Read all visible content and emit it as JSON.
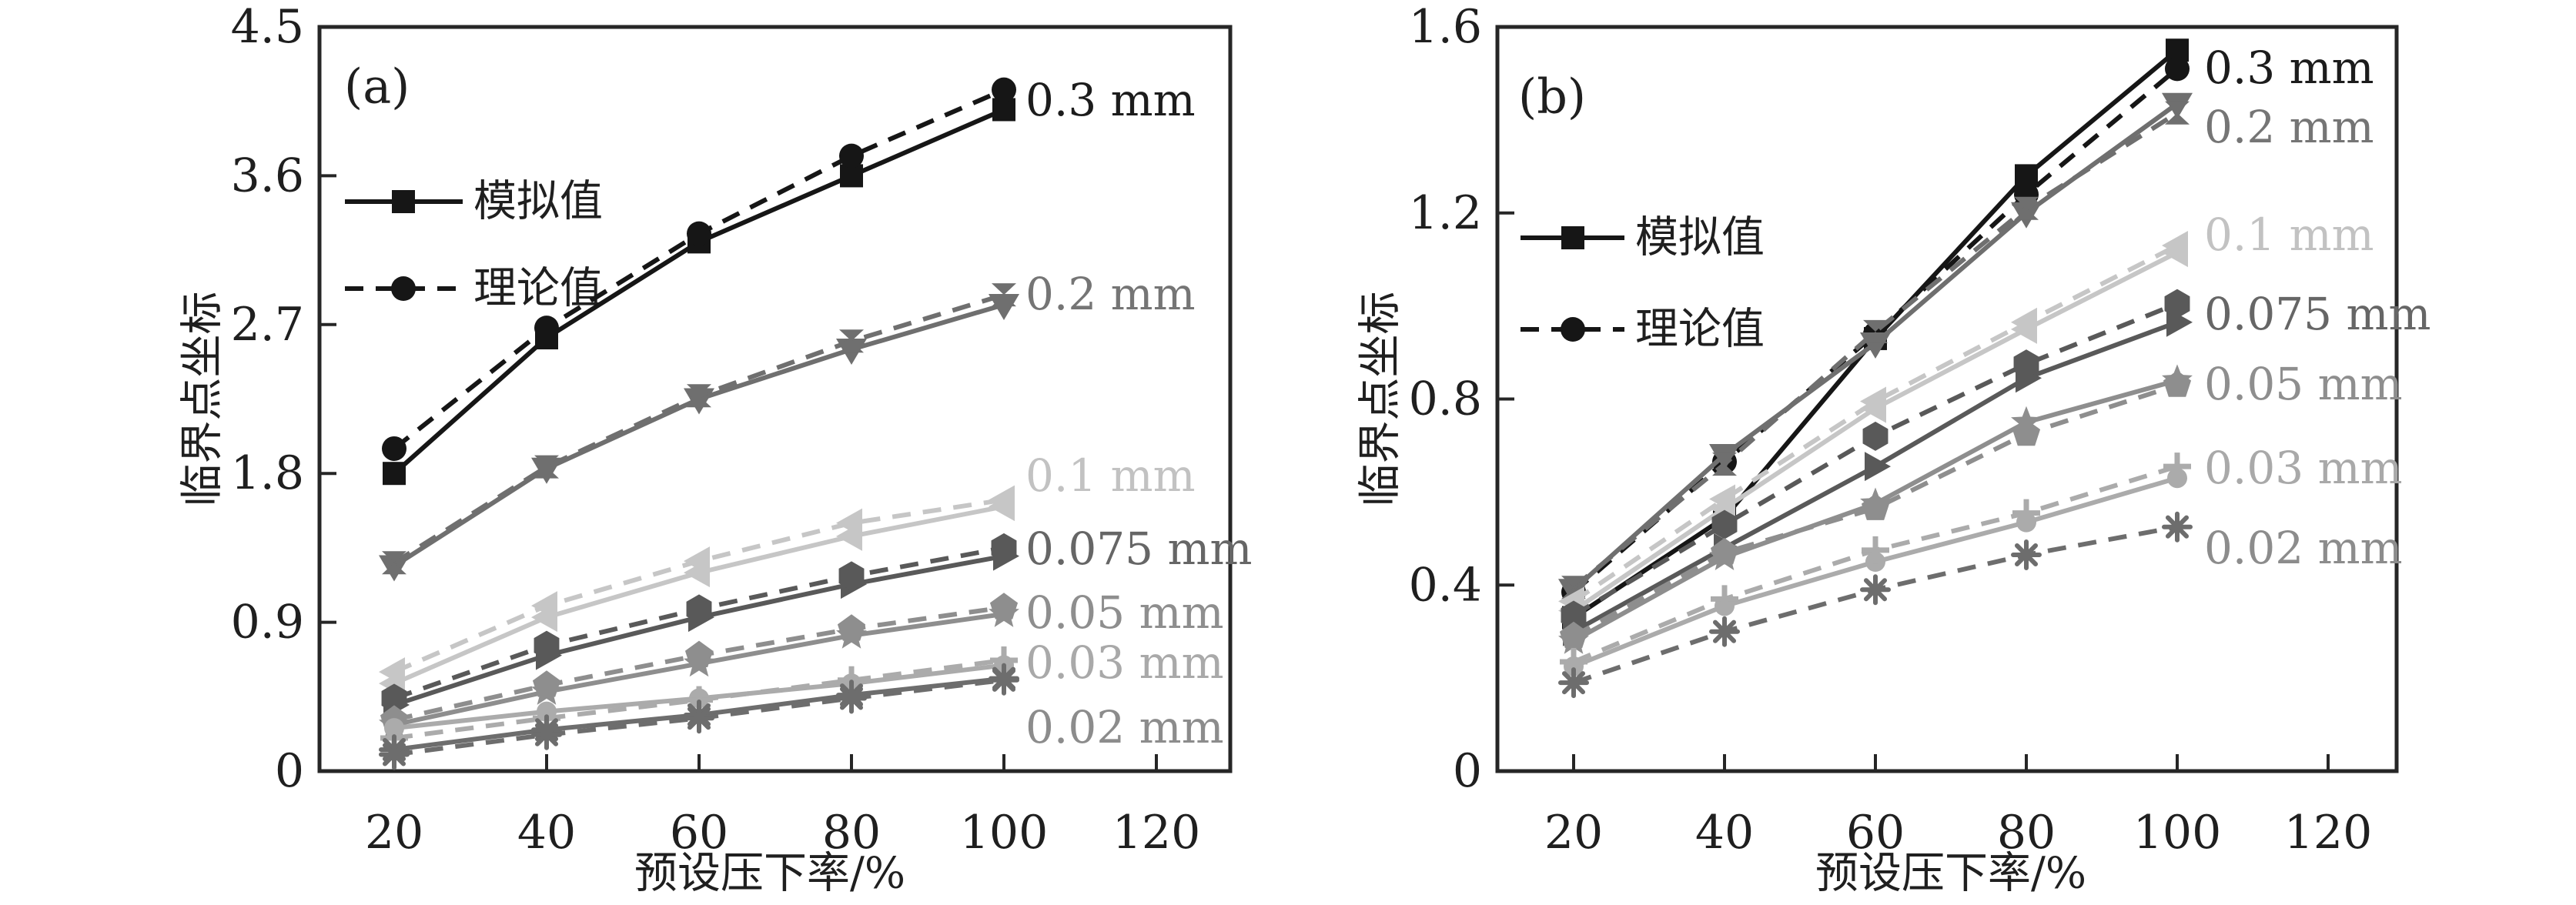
{
  "figure": {
    "background": "#ffffff",
    "axis_color": "#262626",
    "text_color": "#1f1f1f"
  },
  "chart_data": [
    {
      "type": "line",
      "panel_label": "(a)",
      "xlabel": "预设压下率/%",
      "ylabel": "临界点坐标",
      "x": [
        20,
        40,
        60,
        80,
        100
      ],
      "x_ticks": [
        "20",
        "40",
        "60",
        "80",
        "100",
        "120"
      ],
      "x_tick_values": [
        20,
        40,
        60,
        80,
        100,
        120
      ],
      "y_ticks": [
        "0",
        "0.9",
        "1.8",
        "2.7",
        "3.6",
        "4.5"
      ],
      "y_tick_values": [
        0,
        0.9,
        1.8,
        2.7,
        3.6,
        4.5
      ],
      "ylim": [
        0,
        4.5
      ],
      "grid": false,
      "legend_position": "upper-left-inside",
      "legend": [
        {
          "label": "模拟值",
          "style": "solid",
          "marker": "square"
        },
        {
          "label": "理论值",
          "style": "dashed",
          "marker": "circle"
        }
      ],
      "series": [
        {
          "label": "0.3 mm",
          "color": "#161616",
          "label_color": "#1c1c1c",
          "lines": [
            {
              "name": "模拟值",
              "style": "solid",
              "marker": "square",
              "y": [
                1.8,
                2.62,
                3.2,
                3.6,
                4.0
              ]
            },
            {
              "name": "理论值",
              "style": "dashed",
              "marker": "circle",
              "y": [
                1.95,
                2.68,
                3.25,
                3.72,
                4.12
              ]
            }
          ]
        },
        {
          "label": "0.2 mm",
          "color": "#6f6f6f",
          "label_color": "#757575",
          "lines": [
            {
              "name": "模拟值",
              "style": "solid",
              "marker": "triangle-down",
              "y": [
                1.24,
                1.83,
                2.25,
                2.55,
                2.82
              ]
            },
            {
              "name": "理论值",
              "style": "dashed",
              "marker": "hourglass",
              "y": [
                1.26,
                1.84,
                2.27,
                2.6,
                2.88
              ]
            }
          ]
        },
        {
          "label": "0.1 mm",
          "color": "#c6c6c6",
          "label_color": "#c2c2c2",
          "lines": [
            {
              "name": "模拟值",
              "style": "solid",
              "marker": "triangle-left",
              "y": [
                0.53,
                0.93,
                1.2,
                1.42,
                1.6
              ]
            },
            {
              "name": "理论值",
              "style": "dashed",
              "marker": "triangle-left",
              "y": [
                0.6,
                1.0,
                1.27,
                1.5,
                1.64
              ]
            }
          ]
        },
        {
          "label": "0.075 mm",
          "color": "#595959",
          "label_color": "#666666",
          "lines": [
            {
              "name": "模拟值",
              "style": "solid",
              "marker": "triangle-right",
              "y": [
                0.4,
                0.7,
                0.93,
                1.13,
                1.3
              ]
            },
            {
              "name": "理论值",
              "style": "dashed",
              "marker": "hexagon",
              "y": [
                0.44,
                0.76,
                0.98,
                1.18,
                1.35
              ]
            }
          ]
        },
        {
          "label": "0.05 mm",
          "color": "#8e8e8e",
          "label_color": "#8e8e8e",
          "lines": [
            {
              "name": "模拟值",
              "style": "solid",
              "marker": "star",
              "y": [
                0.28,
                0.48,
                0.65,
                0.82,
                0.95
              ]
            },
            {
              "name": "理论值",
              "style": "dashed",
              "marker": "pentagon",
              "y": [
                0.31,
                0.52,
                0.7,
                0.86,
                0.99
              ]
            }
          ]
        },
        {
          "label": "0.03 mm",
          "color": "#ababab",
          "label_color": "#a9a9a9",
          "lines": [
            {
              "name": "模拟值",
              "style": "solid",
              "marker": "dot",
              "y": [
                0.26,
                0.36,
                0.44,
                0.53,
                0.64
              ]
            },
            {
              "name": "理论值",
              "style": "dashed",
              "marker": "plus",
              "y": [
                0.2,
                0.32,
                0.43,
                0.55,
                0.67
              ]
            }
          ]
        },
        {
          "label": "0.02 mm",
          "color": "#6d6d6d",
          "label_color": "#8c8c8c",
          "lines": [
            {
              "name": "模拟值",
              "style": "solid",
              "marker": "asterisk",
              "y": [
                0.13,
                0.25,
                0.34,
                0.46,
                0.56
              ]
            },
            {
              "name": "理论值",
              "style": "dashed",
              "marker": "asterisk",
              "y": [
                0.1,
                0.22,
                0.32,
                0.44,
                0.55
              ]
            }
          ]
        }
      ]
    },
    {
      "type": "line",
      "panel_label": "(b)",
      "xlabel": "预设压下率/%",
      "ylabel": "临界点坐标",
      "x": [
        20,
        40,
        60,
        80,
        100
      ],
      "x_ticks": [
        "20",
        "40",
        "60",
        "80",
        "100",
        "120"
      ],
      "x_tick_values": [
        20,
        40,
        60,
        80,
        100,
        120
      ],
      "y_ticks": [
        "0",
        "0.4",
        "0.8",
        "1.2",
        "1.6"
      ],
      "y_tick_values": [
        0,
        0.4,
        0.8,
        1.2,
        1.6
      ],
      "ylim": [
        0,
        1.6
      ],
      "grid": false,
      "legend_position": "upper-left-inside",
      "legend": [
        {
          "label": "模拟值",
          "style": "solid",
          "marker": "square"
        },
        {
          "label": "理论值",
          "style": "dashed",
          "marker": "circle"
        }
      ],
      "series": [
        {
          "label": "0.3 mm",
          "color": "#161616",
          "label_color": "#1c1c1c",
          "lines": [
            {
              "name": "模拟值",
              "style": "solid",
              "marker": "square",
              "y": [
                0.33,
                0.545,
                0.93,
                1.28,
                1.55
              ]
            },
            {
              "name": "理论值",
              "style": "dashed",
              "marker": "circle",
              "y": [
                0.385,
                0.665,
                0.94,
                1.24,
                1.51
              ]
            }
          ]
        },
        {
          "label": "0.2 mm",
          "color": "#6f6f6f",
          "label_color": "#757575",
          "lines": [
            {
              "name": "模拟值",
              "style": "solid",
              "marker": "triangle-down",
              "y": [
                0.39,
                0.68,
                0.92,
                1.2,
                1.435
              ]
            },
            {
              "name": "理论值",
              "style": "dashed",
              "marker": "hourglass",
              "y": [
                0.395,
                0.66,
                0.945,
                1.21,
                1.415
              ]
            }
          ]
        },
        {
          "label": "0.1 mm",
          "color": "#c6c6c6",
          "label_color": "#c2c2c2",
          "lines": [
            {
              "name": "模拟值",
              "style": "solid",
              "marker": "triangle-left",
              "y": [
                0.345,
                0.565,
                0.78,
                0.95,
                1.115
              ]
            },
            {
              "name": "理论值",
              "style": "dashed",
              "marker": "triangle-left",
              "y": [
                0.365,
                0.585,
                0.795,
                0.965,
                1.13
              ]
            }
          ]
        },
        {
          "label": "0.075 mm",
          "color": "#595959",
          "label_color": "#666666",
          "lines": [
            {
              "name": "模拟值",
              "style": "solid",
              "marker": "triangle-right",
              "y": [
                0.3,
                0.48,
                0.655,
                0.845,
                0.965
              ]
            },
            {
              "name": "理论值",
              "style": "dashed",
              "marker": "hexagon",
              "y": [
                0.335,
                0.53,
                0.72,
                0.875,
                1.005
              ]
            }
          ]
        },
        {
          "label": "0.05 mm",
          "color": "#8e8e8e",
          "label_color": "#8e8e8e",
          "lines": [
            {
              "name": "模拟值",
              "style": "solid",
              "marker": "star",
              "y": [
                0.28,
                0.46,
                0.575,
                0.75,
                0.84
              ]
            },
            {
              "name": "理论值",
              "style": "dashed",
              "marker": "pentagon",
              "y": [
                0.29,
                0.47,
                0.565,
                0.725,
                0.83
              ]
            }
          ]
        },
        {
          "label": "0.03 mm",
          "color": "#ababab",
          "label_color": "#a9a9a9",
          "lines": [
            {
              "name": "模拟值",
              "style": "solid",
              "marker": "dot",
              "y": [
                0.225,
                0.355,
                0.45,
                0.535,
                0.63
              ]
            },
            {
              "name": "理论值",
              "style": "dashed",
              "marker": "plus",
              "y": [
                0.235,
                0.37,
                0.475,
                0.555,
                0.655
              ]
            }
          ]
        },
        {
          "label": "0.02 mm",
          "color": "#6d6d6d",
          "label_color": "#8c8c8c",
          "lines": [
            {
              "name": "理论值",
              "style": "dashed",
              "marker": "asterisk",
              "y": [
                0.19,
                0.3,
                0.39,
                0.465,
                0.525
              ]
            }
          ]
        }
      ]
    }
  ]
}
